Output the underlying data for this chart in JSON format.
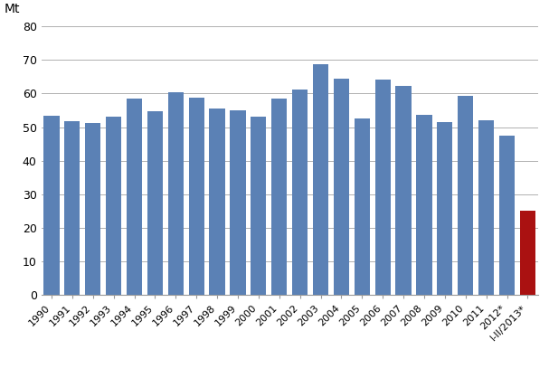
{
  "categories": [
    "1990",
    "1991",
    "1992",
    "1993",
    "1994",
    "1995",
    "1996",
    "1997",
    "1998",
    "1999",
    "2000",
    "2001",
    "2002",
    "2003",
    "2004",
    "2005",
    "2006",
    "2007",
    "2008",
    "2009",
    "2010",
    "2011",
    "2012*",
    "I-II/2013*"
  ],
  "values": [
    53.3,
    51.8,
    51.1,
    53.0,
    58.5,
    54.8,
    60.3,
    58.8,
    55.5,
    55.0,
    53.2,
    58.5,
    61.2,
    68.7,
    64.5,
    52.7,
    64.3,
    62.2,
    53.6,
    51.5,
    59.3,
    52.1,
    47.4,
    25.0
  ],
  "bar_colors": [
    "#5b81b5",
    "#5b81b5",
    "#5b81b5",
    "#5b81b5",
    "#5b81b5",
    "#5b81b5",
    "#5b81b5",
    "#5b81b5",
    "#5b81b5",
    "#5b81b5",
    "#5b81b5",
    "#5b81b5",
    "#5b81b5",
    "#5b81b5",
    "#5b81b5",
    "#5b81b5",
    "#5b81b5",
    "#5b81b5",
    "#5b81b5",
    "#5b81b5",
    "#5b81b5",
    "#5b81b5",
    "#5b81b5",
    "#aa1111"
  ],
  "ylim": [
    0,
    80
  ],
  "yticks": [
    0,
    10,
    20,
    30,
    40,
    50,
    60,
    70,
    80
  ],
  "background_color": "#ffffff",
  "grid_color": "#b0b0b0",
  "ylabel_text": "Mt",
  "ylabel_fontsize": 10,
  "tick_fontsize": 9,
  "xtick_fontsize": 8
}
